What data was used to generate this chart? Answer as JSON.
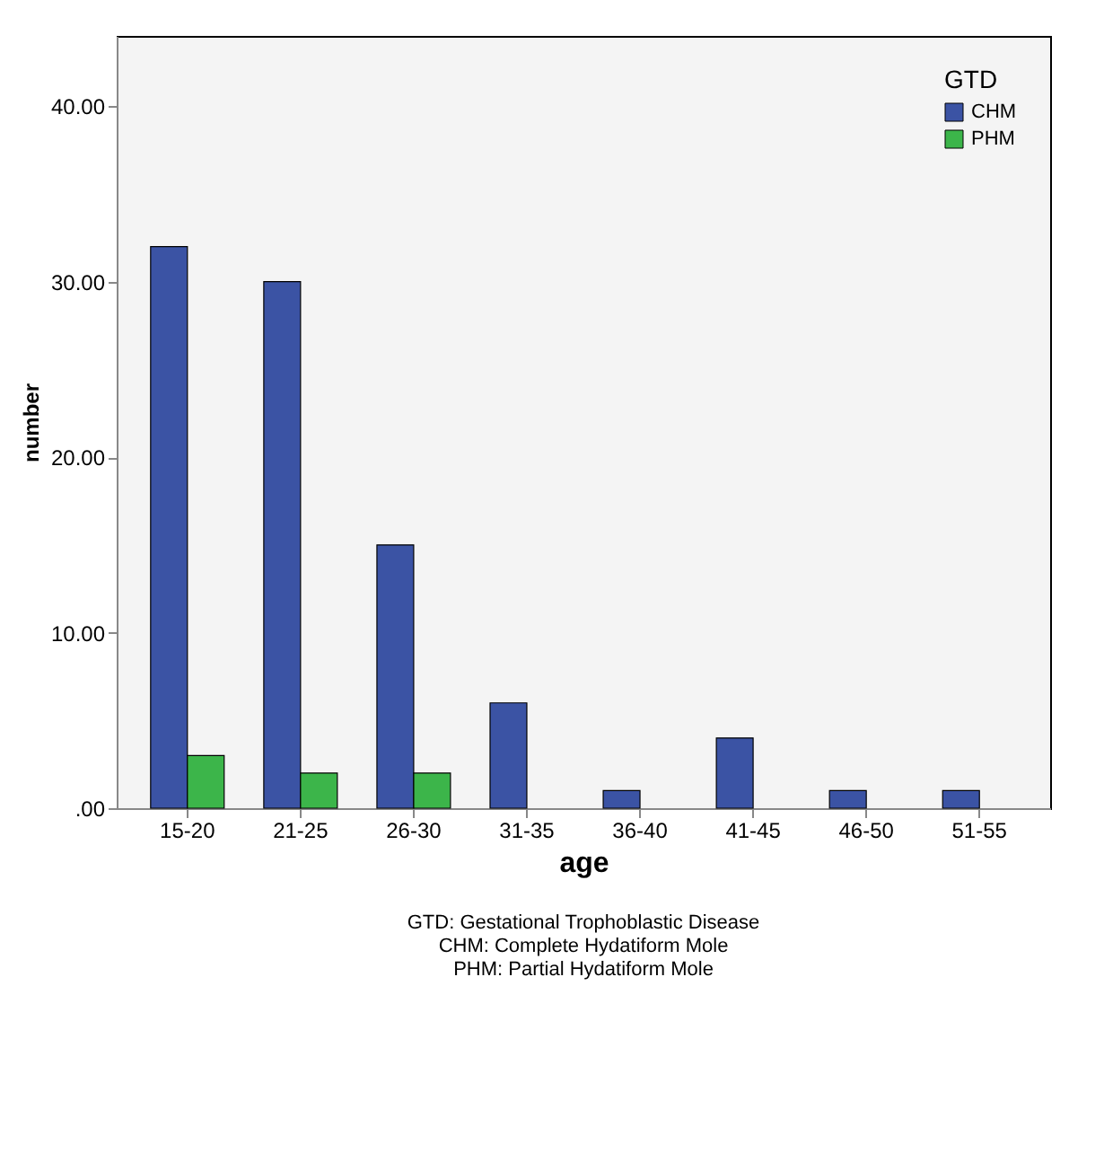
{
  "chart_data": {
    "type": "bar",
    "xlabel": "age",
    "ylabel": "number",
    "legend_title": "GTD",
    "categories": [
      "15-20",
      "21-25",
      "26-30",
      "31-35",
      "36-40",
      "41-45",
      "46-50",
      "51-55"
    ],
    "series": [
      {
        "name": "CHM",
        "color": "#3b53a4",
        "values": [
          32,
          30,
          15,
          6,
          1,
          4,
          1,
          1
        ]
      },
      {
        "name": "PHM",
        "color": "#3cb54a",
        "values": [
          3,
          2,
          2,
          null,
          null,
          null,
          null,
          null
        ]
      }
    ],
    "ylim": [
      0,
      44
    ],
    "yticks": [
      {
        "value": 0,
        "label": ".00"
      },
      {
        "value": 10,
        "label": "10.00"
      },
      {
        "value": 20,
        "label": "20.00"
      },
      {
        "value": 30,
        "label": "30.00"
      },
      {
        "value": 40,
        "label": "40.00"
      }
    ],
    "legend": "top right",
    "grid": false,
    "annotations": [
      "GTD: Gestational Trophoblastic Disease",
      "CHM: Complete Hydatiform Mole",
      "PHM: Partial Hydatiform Mole"
    ]
  }
}
